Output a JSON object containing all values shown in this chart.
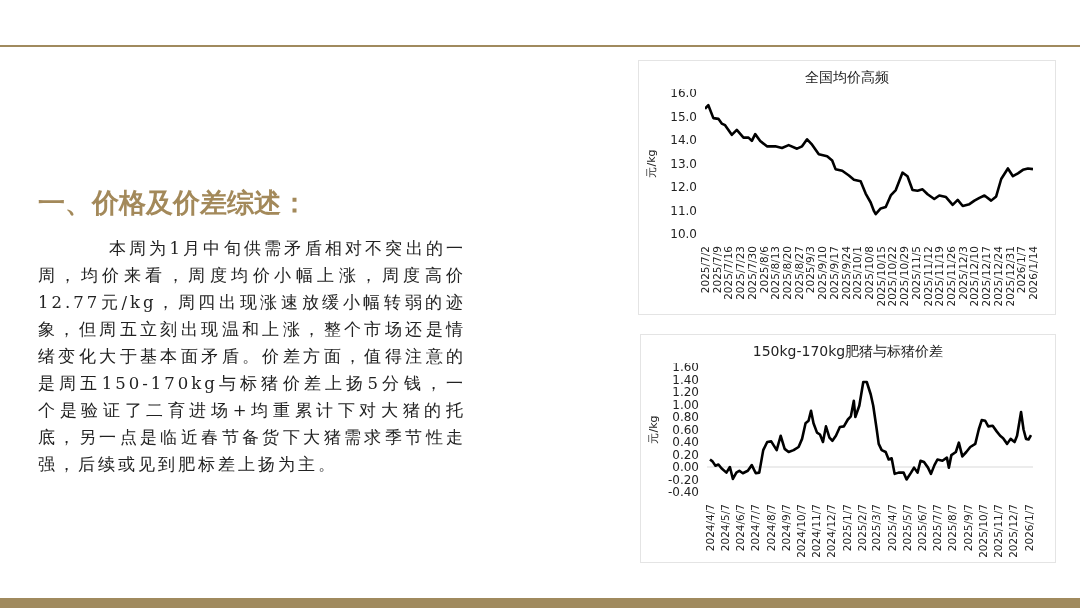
{
  "chart_data": [
    {
      "type": "other",
      "title": "一、价格及价差综述：",
      "annotations": [
        "本周为1月中旬供需矛盾相对不突出的一周，均价来看，周度均价小幅上涨，周度高价12.77元/kg，周四出现涨速放缓小幅转弱的迹象，但周五立刻出现温和上涨，整个市场还是情绪变化大于基本面矛盾。价差方面，值得注意的是周五150-170kg与标猪价差上扬5分钱，一个是验证了二育进场+均重累计下对大猪的托底，另一点是临近春节备货下大猪需求季节性走强，后续或见到肥标差上扬为主。"
      ]
    },
    {
      "type": "line",
      "title": "全国均价高频",
      "ylabel": "元/kg",
      "legend": false,
      "grid": false,
      "marker": "none",
      "line_style": "solid",
      "x": [
        "2025-07-02",
        "2025-07-04",
        "2025-07-07",
        "2025-07-10",
        "2025-07-12",
        "2025-07-14",
        "2025-07-18",
        "2025-07-21",
        "2025-07-25",
        "2025-07-28",
        "2025-07-30",
        "2025-08-01",
        "2025-08-04",
        "2025-08-08",
        "2025-08-13",
        "2025-08-17",
        "2025-08-21",
        "2025-08-26",
        "2025-08-29",
        "2025-09-01",
        "2025-09-04",
        "2025-09-08",
        "2025-09-13",
        "2025-09-16",
        "2025-09-18",
        "2025-09-22",
        "2025-09-26",
        "2025-09-29",
        "2025-10-03",
        "2025-10-06",
        "2025-10-09",
        "2025-10-11",
        "2025-10-12",
        "2025-10-15",
        "2025-10-18",
        "2025-10-21",
        "2025-10-24",
        "2025-10-28",
        "2025-10-31",
        "2025-11-03",
        "2025-11-06",
        "2025-11-09",
        "2025-11-12",
        "2025-11-16",
        "2025-11-19",
        "2025-11-23",
        "2025-11-27",
        "2025-11-30",
        "2025-12-03",
        "2025-12-07",
        "2025-12-10",
        "2025-12-13",
        "2025-12-16",
        "2025-12-20",
        "2025-12-23",
        "2025-12-26",
        "2025-12-30",
        "2026-01-02",
        "2026-01-05",
        "2026-01-08",
        "2026-01-11",
        "2026-01-14"
      ],
      "series": [
        {
          "color": "#000000",
          "values": [
            15.33,
            15.48,
            14.93,
            14.9,
            14.7,
            14.63,
            14.22,
            14.43,
            14.1,
            14.1,
            13.96,
            14.25,
            13.96,
            13.73,
            13.73,
            13.66,
            13.78,
            13.63,
            13.73,
            14.03,
            13.8,
            13.39,
            13.31,
            13.13,
            12.76,
            12.69,
            12.49,
            12.31,
            12.24,
            11.72,
            11.34,
            10.97,
            10.85,
            11.09,
            11.15,
            11.64,
            11.87,
            12.61,
            12.46,
            11.87,
            11.84,
            11.9,
            11.69,
            11.49,
            11.64,
            11.57,
            11.24,
            11.45,
            11.19,
            11.27,
            11.42,
            11.54,
            11.64,
            11.42,
            11.6,
            12.34,
            12.79,
            12.46,
            12.58,
            12.73,
            12.79,
            12.76
          ]
        }
      ],
      "xlim": [
        "2025-07-02",
        "2026-01-14"
      ],
      "xticks": [
        {
          "value": "2025-07-02",
          "label": "2025/7/2"
        },
        {
          "value": "2025-07-09",
          "label": "2025/7/9"
        },
        {
          "value": "2025-07-16",
          "label": "2025/7/16"
        },
        {
          "value": "2025-07-23",
          "label": "2025/7/23"
        },
        {
          "value": "2025-07-30",
          "label": "2025/7/30"
        },
        {
          "value": "2025-08-06",
          "label": "2025/8/6"
        },
        {
          "value": "2025-08-13",
          "label": "2025/8/13"
        },
        {
          "value": "2025-08-20",
          "label": "2025/8/20"
        },
        {
          "value": "2025-08-27",
          "label": "2025/8/27"
        },
        {
          "value": "2025-09-03",
          "label": "2025/9/3"
        },
        {
          "value": "2025-09-10",
          "label": "2025/9/10"
        },
        {
          "value": "2025-09-17",
          "label": "2025/9/17"
        },
        {
          "value": "2025-09-24",
          "label": "2025/9/24"
        },
        {
          "value": "2025-10-01",
          "label": "2025/10/1"
        },
        {
          "value": "2025-10-08",
          "label": "2025/10/8"
        },
        {
          "value": "2025-10-15",
          "label": "2025/10/15"
        },
        {
          "value": "2025-10-22",
          "label": "2025/10/22"
        },
        {
          "value": "2025-10-29",
          "label": "2025/10/29"
        },
        {
          "value": "2025-11-05",
          "label": "2025/11/5"
        },
        {
          "value": "2025-11-12",
          "label": "2025/11/12"
        },
        {
          "value": "2025-11-19",
          "label": "2025/11/19"
        },
        {
          "value": "2025-11-26",
          "label": "2025/11/26"
        },
        {
          "value": "2025-12-03",
          "label": "2025/12/3"
        },
        {
          "value": "2025-12-10",
          "label": "2025/12/10"
        },
        {
          "value": "2025-12-17",
          "label": "2025/12/17"
        },
        {
          "value": "2025-12-24",
          "label": "2025/12/24"
        },
        {
          "value": "2025-12-31",
          "label": "2025/12/31"
        },
        {
          "value": "2026-01-07",
          "label": "2026/1/7"
        },
        {
          "value": "2026-01-14",
          "label": "2026/1/14"
        }
      ],
      "ylim": [
        10,
        16
      ],
      "yticks": [
        {
          "value": 10,
          "label": "10.0"
        },
        {
          "value": 11,
          "label": "11.0"
        },
        {
          "value": 12,
          "label": "12.0"
        },
        {
          "value": 13,
          "label": "13.0"
        },
        {
          "value": 14,
          "label": "14.0"
        },
        {
          "value": 15,
          "label": "15.0"
        },
        {
          "value": 16,
          "label": "16.0"
        }
      ]
    },
    {
      "type": "line",
      "title": "150kg-170kg肥猪与标猪价差",
      "ylabel": "元/kg",
      "legend": false,
      "grid": false,
      "marker": "none",
      "line_style": "solid",
      "x": [
        "2024-04-07",
        "2024-04-12",
        "2024-04-18",
        "2024-04-24",
        "2024-04-30",
        "2024-05-10",
        "2024-05-17",
        "2024-05-23",
        "2024-05-30",
        "2024-06-05",
        "2024-06-12",
        "2024-06-22",
        "2024-06-30",
        "2024-07-08",
        "2024-07-15",
        "2024-07-23",
        "2024-07-31",
        "2024-08-08",
        "2024-08-19",
        "2024-08-27",
        "2024-09-04",
        "2024-09-12",
        "2024-09-22",
        "2024-10-02",
        "2024-10-09",
        "2024-10-16",
        "2024-10-22",
        "2024-10-27",
        "2024-11-01",
        "2024-11-08",
        "2024-11-14",
        "2024-11-20",
        "2024-11-26",
        "2024-12-03",
        "2024-12-09",
        "2024-12-16",
        "2024-12-24",
        "2025-01-01",
        "2025-01-09",
        "2025-01-15",
        "2025-01-21",
        "2025-01-24",
        "2025-02-01",
        "2025-02-09",
        "2025-02-16",
        "2025-02-24",
        "2025-03-01",
        "2025-03-08",
        "2025-03-12",
        "2025-03-18",
        "2025-03-26",
        "2025-04-01",
        "2025-04-07",
        "2025-04-13",
        "2025-04-21",
        "2025-05-01",
        "2025-05-07",
        "2025-05-16",
        "2025-05-22",
        "2025-05-29",
        "2025-06-04",
        "2025-06-11",
        "2025-06-19",
        "2025-06-25",
        "2025-07-02",
        "2025-07-08",
        "2025-07-18",
        "2025-07-27",
        "2025-07-31",
        "2025-08-05",
        "2025-08-14",
        "2025-08-20",
        "2025-08-27",
        "2025-09-04",
        "2025-09-12",
        "2025-09-22",
        "2025-09-29",
        "2025-10-05",
        "2025-10-12",
        "2025-10-18",
        "2025-10-27",
        "2025-11-04",
        "2025-11-11",
        "2025-11-17",
        "2025-11-25",
        "2025-12-02",
        "2025-12-10",
        "2025-12-15",
        "2025-12-23",
        "2025-12-28",
        "2026-01-02",
        "2026-01-07",
        "2026-01-12"
      ],
      "series": [
        {
          "color": "#000000",
          "values": [
            0.12,
            0.09,
            0.02,
            0.04,
            -0.02,
            -0.09,
            0.0,
            -0.19,
            -0.09,
            -0.06,
            -0.1,
            -0.06,
            0.03,
            -0.1,
            -0.09,
            0.27,
            0.4,
            0.41,
            0.27,
            0.5,
            0.29,
            0.24,
            0.27,
            0.32,
            0.45,
            0.7,
            0.74,
            0.9,
            0.7,
            0.55,
            0.52,
            0.4,
            0.65,
            0.47,
            0.42,
            0.5,
            0.64,
            0.65,
            0.76,
            0.81,
            1.06,
            0.8,
            0.98,
            1.36,
            1.36,
            1.16,
            0.98,
            0.6,
            0.37,
            0.27,
            0.24,
            0.12,
            0.14,
            -0.11,
            -0.09,
            -0.09,
            -0.2,
            -0.09,
            -0.01,
            -0.09,
            0.1,
            0.08,
            -0.01,
            -0.11,
            0.03,
            0.12,
            0.1,
            0.15,
            -0.01,
            0.19,
            0.24,
            0.39,
            0.17,
            0.24,
            0.32,
            0.37,
            0.6,
            0.75,
            0.74,
            0.65,
            0.66,
            0.57,
            0.5,
            0.46,
            0.37,
            0.45,
            0.4,
            0.5,
            0.88,
            0.6,
            0.45,
            0.44,
            0.51
          ]
        }
      ],
      "ref_lines": [
        {
          "axis": "y",
          "value": 0,
          "color": "#d9d9d9"
        }
      ],
      "xlim": [
        "2024-04-01",
        "2026-01-16"
      ],
      "xticks": [
        {
          "value": "2024-04-07",
          "label": "2024/4/7"
        },
        {
          "value": "2024-05-07",
          "label": "2024/5/7"
        },
        {
          "value": "2024-06-07",
          "label": "2024/6/7"
        },
        {
          "value": "2024-07-07",
          "label": "2024/7/7"
        },
        {
          "value": "2024-08-07",
          "label": "2024/8/7"
        },
        {
          "value": "2024-09-07",
          "label": "2024/9/7"
        },
        {
          "value": "2024-10-07",
          "label": "2024/10/7"
        },
        {
          "value": "2024-11-07",
          "label": "2024/11/7"
        },
        {
          "value": "2024-12-07",
          "label": "2024/12/7"
        },
        {
          "value": "2025-01-07",
          "label": "2025/1/7"
        },
        {
          "value": "2025-02-07",
          "label": "2025/2/7"
        },
        {
          "value": "2025-03-07",
          "label": "2025/3/7"
        },
        {
          "value": "2025-04-07",
          "label": "2025/4/7"
        },
        {
          "value": "2025-05-07",
          "label": "2025/5/7"
        },
        {
          "value": "2025-06-07",
          "label": "2025/6/7"
        },
        {
          "value": "2025-07-07",
          "label": "2025/7/7"
        },
        {
          "value": "2025-08-07",
          "label": "2025/8/7"
        },
        {
          "value": "2025-09-07",
          "label": "2025/9/7"
        },
        {
          "value": "2025-10-07",
          "label": "2025/10/7"
        },
        {
          "value": "2025-11-07",
          "label": "2025/11/7"
        },
        {
          "value": "2025-12-07",
          "label": "2025/12/7"
        },
        {
          "value": "2026-01-07",
          "label": "2026/1/7"
        }
      ],
      "ylim": [
        -0.4,
        1.6
      ],
      "yticks": [
        {
          "value": -0.4,
          "label": "-0.40"
        },
        {
          "value": -0.2,
          "label": "-0.20"
        },
        {
          "value": 0,
          "label": "0.00"
        },
        {
          "value": 0.2,
          "label": "0.20"
        },
        {
          "value": 0.4,
          "label": "0.40"
        },
        {
          "value": 0.6,
          "label": "0.60"
        },
        {
          "value": 0.8,
          "label": "0.80"
        },
        {
          "value": 1.0,
          "label": "1.00"
        },
        {
          "value": 1.2,
          "label": "1.20"
        },
        {
          "value": 1.4,
          "label": "1.40"
        },
        {
          "value": 1.6,
          "label": "1.60"
        }
      ]
    }
  ]
}
